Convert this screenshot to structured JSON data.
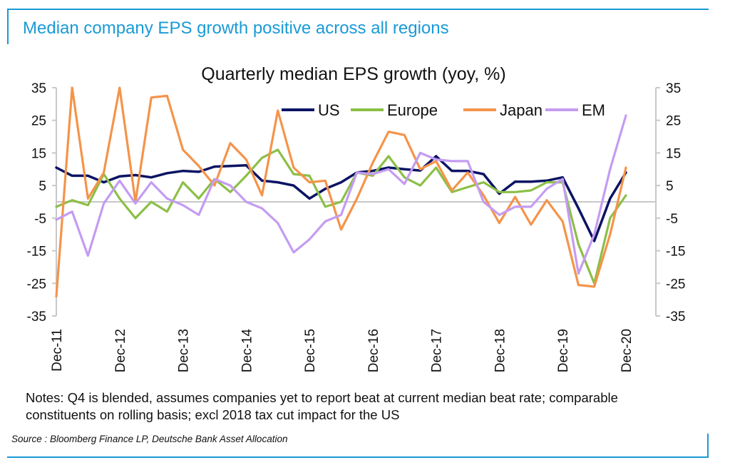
{
  "headline": "Median company EPS growth positive across all regions",
  "notes": "Notes: Q4 is blended, assumes companies yet to report beat at current median beat rate; comparable constituents on rolling basis; excl 2018 tax cut impact for the US",
  "source": "Source : Bloomberg Finance LP, Deutsche Bank Asset Allocation",
  "colors": {
    "frame": "#1a9ad6",
    "headline": "#1a9ad6"
  },
  "chart_data": {
    "type": "line",
    "title": "Quarterly median EPS growth (yoy, %)",
    "xlabel": "",
    "ylabel": "",
    "ylim": [
      -35,
      35
    ],
    "yticks": [
      35,
      25,
      15,
      5,
      -5,
      -15,
      -25,
      -35
    ],
    "yticks_right": [
      35,
      25,
      15,
      5,
      -5,
      -15,
      -25,
      -35
    ],
    "xtick_labels": [
      "Dec-11",
      "Dec-12",
      "Dec-13",
      "Dec-14",
      "Dec-15",
      "Dec-16",
      "Dec-17",
      "Dec-18",
      "Dec-19",
      "Dec-20"
    ],
    "xtick_positions": [
      0,
      4,
      8,
      12,
      16,
      20,
      24,
      28,
      32,
      36
    ],
    "x_count": 37,
    "legend_position": "top-right",
    "grid": false,
    "zero_line": true,
    "series": [
      {
        "name": "US",
        "color": "#0b1464",
        "values": [
          10.5,
          8,
          8,
          6,
          7.8,
          8.2,
          7.5,
          8.8,
          9.5,
          9.2,
          10.8,
          11,
          11.2,
          6.5,
          6,
          5,
          1,
          4,
          6,
          9,
          9.5,
          10.5,
          10,
          9.6,
          14,
          9.5,
          9.5,
          8.5,
          2.5,
          6.2,
          6.2,
          6.5,
          7.5,
          -2,
          -12,
          1,
          9
        ]
      },
      {
        "name": "Europe",
        "color": "#8cbf47",
        "values": [
          -1.5,
          0.5,
          -1,
          8.5,
          1,
          -5,
          0,
          -3,
          6,
          1,
          7,
          3,
          8,
          13.5,
          16,
          8.5,
          8,
          -1.5,
          0,
          9,
          8,
          14,
          7.5,
          5,
          10.5,
          3,
          4.5,
          6,
          3,
          3,
          3.5,
          6,
          6,
          -13,
          -25,
          -5,
          2
        ]
      },
      {
        "name": "Japan",
        "color": "#f4944a",
        "values": [
          -29,
          35,
          1,
          9,
          35,
          0,
          32,
          32.5,
          16,
          11,
          5,
          18,
          13,
          2,
          28,
          10.5,
          6,
          6.5,
          -8.5,
          1,
          12,
          21.5,
          20.5,
          10,
          12.5,
          3.5,
          9,
          2,
          -6.5,
          1.5,
          -7,
          0.5,
          -6,
          -25.5,
          -26,
          -10,
          10.5
        ]
      },
      {
        "name": "EM",
        "color": "#c49cf2",
        "values": [
          -5.5,
          -3,
          -16.5,
          -0.5,
          6.5,
          -0.5,
          6,
          1,
          -1,
          -4,
          7,
          5,
          0,
          -2,
          -6.5,
          -15.5,
          -11.5,
          -6,
          -4,
          9,
          8.5,
          10,
          5.5,
          15,
          13,
          12.5,
          12.5,
          0,
          -4,
          -1.5,
          -1.5,
          4,
          7,
          -22,
          -10,
          10,
          26.5
        ]
      }
    ]
  }
}
